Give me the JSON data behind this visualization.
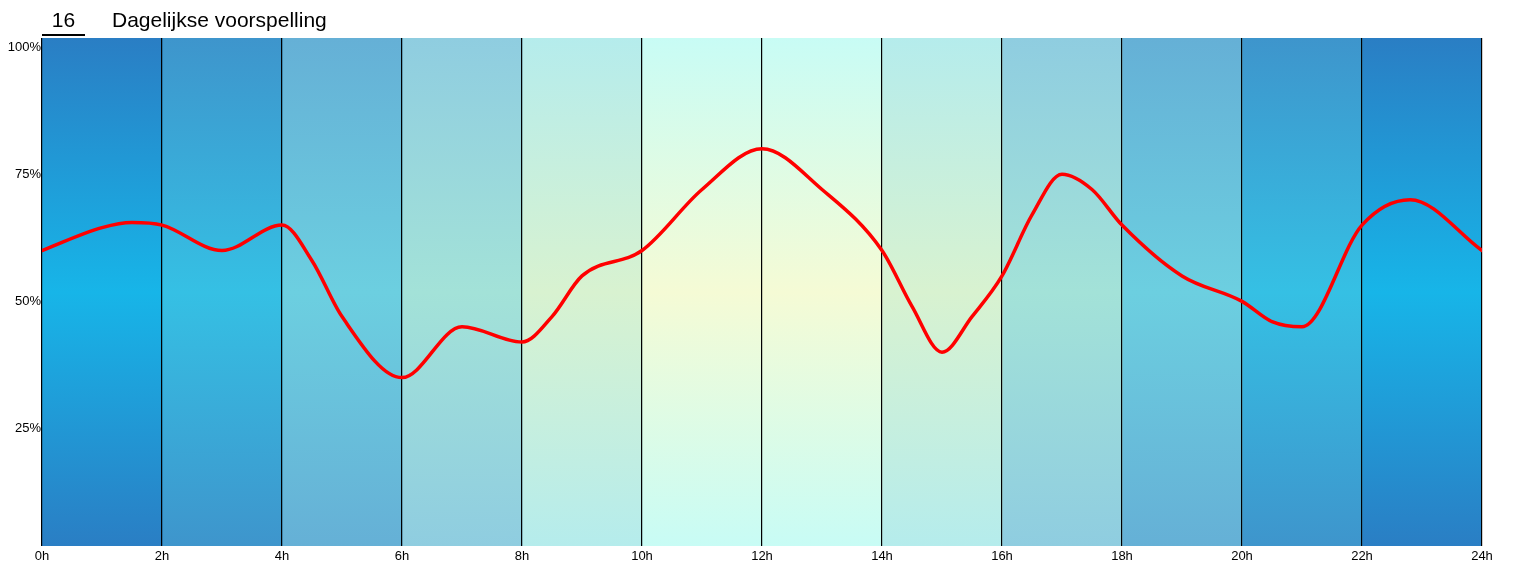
{
  "chart_data": {
    "type": "line",
    "title": "Dagelijkse voorspelling",
    "annotations": [
      "16"
    ],
    "x": [
      0,
      1,
      1.5,
      2,
      3,
      4,
      4.5,
      5,
      6,
      7,
      8,
      8.5,
      9,
      10,
      11,
      12,
      13,
      14,
      14.5,
      15,
      15.5,
      16,
      16.5,
      17,
      17.5,
      18,
      19,
      20,
      20.5,
      21,
      22,
      22.8,
      24
    ],
    "series": [
      {
        "color": "#ff0000",
        "values": [
          60,
          64.5,
          65.5,
          65,
          60,
          65,
          58,
          47,
          35,
          45,
          42,
          47,
          55,
          60,
          72,
          80,
          72,
          60,
          49,
          40,
          47,
          55,
          67,
          75,
          72,
          65,
          55,
          50,
          46,
          45,
          65,
          70,
          60
        ]
      }
    ],
    "xlim": [
      0,
      24
    ],
    "xticks": [
      {
        "value": 0,
        "label": "0h"
      },
      {
        "value": 2,
        "label": "2h"
      },
      {
        "value": 4,
        "label": "4h"
      },
      {
        "value": 6,
        "label": "6h"
      },
      {
        "value": 8,
        "label": "8h"
      },
      {
        "value": 10,
        "label": "10h"
      },
      {
        "value": 12,
        "label": "12h"
      },
      {
        "value": 14,
        "label": "14h"
      },
      {
        "value": 16,
        "label": "16h"
      },
      {
        "value": 18,
        "label": "18h"
      },
      {
        "value": 20,
        "label": "20h"
      },
      {
        "value": 22,
        "label": "22h"
      },
      {
        "value": 24,
        "label": "24h"
      }
    ],
    "ylim": [
      1.8,
      101.8
    ],
    "yticks": [
      {
        "value": 25,
        "label": "25%"
      },
      {
        "value": 50,
        "label": "50%"
      },
      {
        "value": 75,
        "label": "75%"
      },
      {
        "value": 100,
        "label": "100%"
      }
    ],
    "grid": "x",
    "legend": false,
    "marker": "none",
    "line_style": "solid"
  }
}
